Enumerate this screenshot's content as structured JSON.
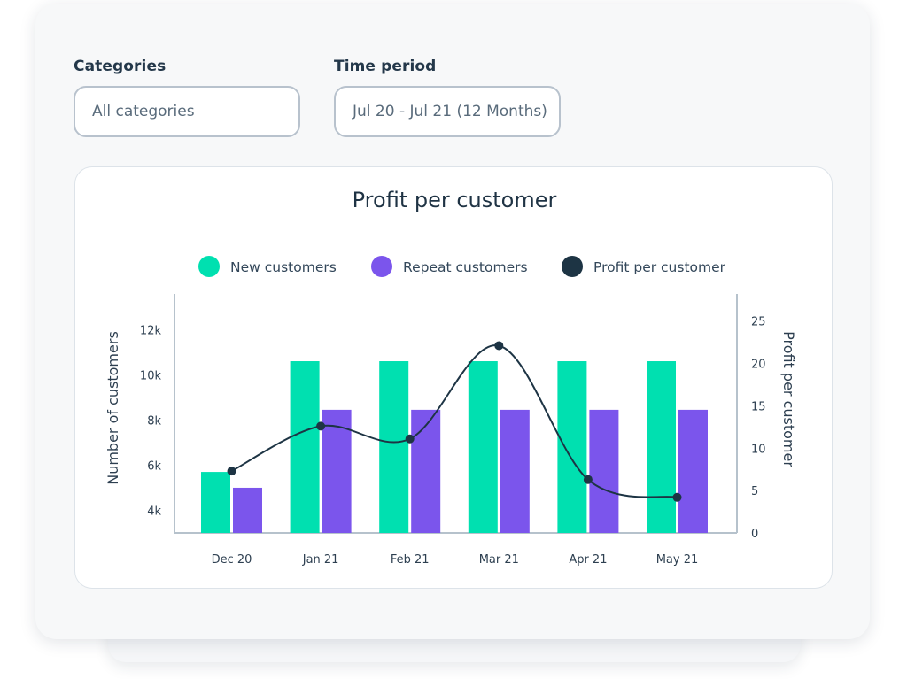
{
  "filters": {
    "categories": {
      "label": "Categories",
      "value": "All categories"
    },
    "time_period": {
      "label": "Time period",
      "value": "Jul 20 - Jul 21 (12 Months)"
    }
  },
  "colors": {
    "new_customers": "#00e0b0",
    "repeat_customers": "#7b55ec",
    "profit_line": "#1d3444",
    "axis": "#b6c2cc"
  },
  "chart_data": {
    "type": "bar",
    "title": "Profit per customer",
    "categories": [
      "Dec 20",
      "Jan 21",
      "Feb 21",
      "Mar 21",
      "Apr 21",
      "May 21"
    ],
    "series": [
      {
        "name": "New customers",
        "type": "bar",
        "axis": "left",
        "values": [
          5700,
          10600,
          10600,
          10600,
          10600,
          10600
        ]
      },
      {
        "name": "Repeat customers",
        "type": "bar",
        "axis": "left",
        "values": [
          5000,
          8450,
          8450,
          8450,
          8450,
          8450
        ]
      },
      {
        "name": "Profit per customer",
        "type": "line",
        "smooth": true,
        "axis": "right",
        "values": [
          7.3,
          12.6,
          11.1,
          22.1,
          6.3,
          4.2
        ]
      }
    ],
    "ylabel": "Number of customers",
    "y2label": "Profit per customer",
    "ylim": [
      3000,
      13500
    ],
    "yticks": [
      4000,
      6000,
      8000,
      10000,
      12000
    ],
    "ytick_labels": [
      "4k",
      "6k",
      "8k",
      "10k",
      "12k"
    ],
    "y2lim": [
      0,
      28
    ],
    "y2ticks": [
      0,
      5,
      10,
      15,
      20,
      25
    ],
    "y2tick_labels": [
      "0",
      "5",
      "10",
      "15",
      "20",
      "25"
    ],
    "legend": "top",
    "grid": false
  }
}
